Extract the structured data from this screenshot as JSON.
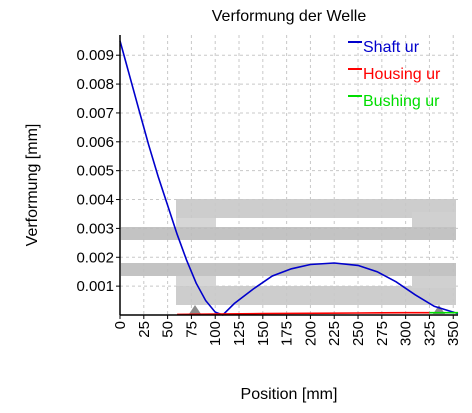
{
  "chart_data": {
    "type": "line",
    "title": "Verformung der Welle",
    "xlabel": "Position [mm]",
    "ylabel": "Verformung [mm]",
    "xlim": [
      0,
      355
    ],
    "ylim": [
      0,
      0.0097
    ],
    "xticks": [
      0,
      25,
      50,
      75,
      100,
      125,
      150,
      175,
      200,
      225,
      250,
      275,
      300,
      325,
      350
    ],
    "yticks": [
      0.001,
      0.002,
      0.003,
      0.004,
      0.005,
      0.006,
      0.007,
      0.008,
      0.009
    ],
    "ytick_labels": [
      "0.001",
      "0.002",
      "0.003",
      "0.004",
      "0.005",
      "0.006",
      "0.007",
      "0.008",
      "0.009"
    ],
    "grid": true,
    "legend_position": "top-right",
    "series": [
      {
        "name": "Shaft ur",
        "color": "#0000cc",
        "x": [
          0,
          10,
          20,
          30,
          40,
          50,
          60,
          70,
          80,
          90,
          100,
          108,
          120,
          140,
          160,
          180,
          200,
          225,
          250,
          270,
          290,
          310,
          330,
          355
        ],
        "y": [
          0.0095,
          0.0083,
          0.0071,
          0.0059,
          0.0048,
          0.0038,
          0.0028,
          0.0019,
          0.0011,
          0.0005,
          0.0001,
          0.0,
          0.0004,
          0.0009,
          0.00135,
          0.0016,
          0.00175,
          0.0018,
          0.00172,
          0.0015,
          0.00115,
          0.0007,
          0.0003,
          5e-05
        ]
      },
      {
        "name": "Housing ur",
        "color": "#ff0000",
        "x": [
          60,
          100,
          150,
          200,
          250,
          300,
          325
        ],
        "y": [
          2e-05,
          3e-05,
          5e-05,
          6e-05,
          7e-05,
          8e-05,
          8e-05
        ]
      },
      {
        "name": "Bushing ur",
        "color": "#00dd00",
        "x": [
          325,
          355
        ],
        "y": [
          8e-05,
          8e-05
        ]
      }
    ]
  }
}
